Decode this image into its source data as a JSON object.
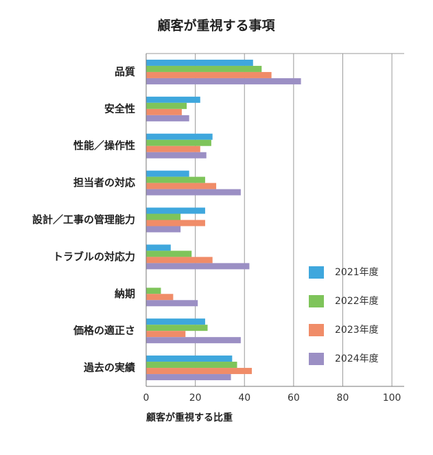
{
  "chart_data": {
    "type": "barh",
    "title": "顧客が重視する事項",
    "x_label": "顧客が重視する比重",
    "categories": [
      "品質",
      "安全性",
      "性能／操作性",
      "担当者の対応",
      "設計／工事の管理能力",
      "トラブルの対応力",
      "納期",
      "価格の適正さ",
      "過去の実績"
    ],
    "series": [
      {
        "name": "2021年度",
        "color": "#3fa7dd",
        "values": [
          43.5,
          22,
          27,
          17.5,
          24,
          10,
          0,
          24,
          35
        ]
      },
      {
        "name": "2022年度",
        "color": "#7ec45a",
        "values": [
          47,
          16.5,
          26.5,
          24,
          14,
          18.5,
          6,
          25,
          37
        ]
      },
      {
        "name": "2023年度",
        "color": "#f08c68",
        "values": [
          51,
          14.5,
          22,
          28.5,
          24,
          27,
          11,
          16,
          43
        ]
      },
      {
        "name": "2024年度",
        "color": "#9b8fc4",
        "values": [
          63,
          17.5,
          24.5,
          38.5,
          14,
          42,
          21,
          38.5,
          34.5
        ]
      }
    ],
    "xlim": [
      0,
      105
    ],
    "xticks": [
      0,
      20,
      40,
      60,
      80,
      100
    ],
    "grid": true,
    "legend": "right"
  }
}
